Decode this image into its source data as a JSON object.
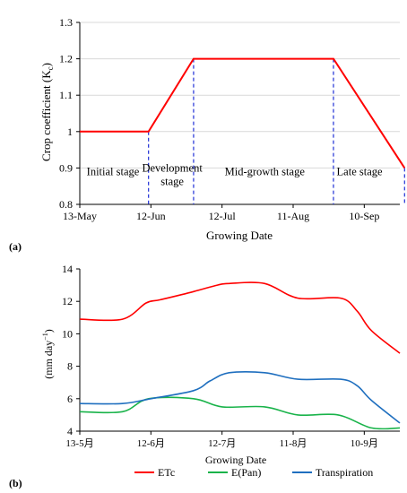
{
  "colors": {
    "kc_line": "#ff0000",
    "stage_divider": "#1f2fd6",
    "etc": "#ff0000",
    "epan": "#19b34a",
    "transpiration": "#1f6fbf"
  },
  "chart_data": [
    {
      "panel_label": "(a)",
      "type": "line",
      "xlabel": "Growing Date",
      "ylabel": "Crop coefficient (K",
      "ylabel_sub": "c",
      "ylabel_end": ")",
      "xlim": [
        "2021-05-13",
        "2021-09-25"
      ],
      "ylim": [
        0.8,
        1.3
      ],
      "x_ticks": [
        {
          "date": "2021-05-13",
          "label": "13-May"
        },
        {
          "date": "2021-06-12",
          "label": "12-Jun"
        },
        {
          "date": "2021-07-12",
          "label": "12-Jul"
        },
        {
          "date": "2021-08-11",
          "label": "11-Aug"
        },
        {
          "date": "2021-09-10",
          "label": "10-Sep"
        }
      ],
      "y_ticks": [
        {
          "value": 0.8,
          "label": "0.8"
        },
        {
          "value": 0.9,
          "label": "0.9"
        },
        {
          "value": 1.0,
          "label": "1"
        },
        {
          "value": 1.1,
          "label": "1.1"
        },
        {
          "value": 1.2,
          "label": "1.2"
        },
        {
          "value": 1.3,
          "label": "1.3"
        }
      ],
      "series": [
        {
          "x": [
            "2021-05-13",
            "2021-06-11",
            "2021-06-30",
            "2021-08-28",
            "2021-09-27"
          ],
          "y": [
            1.0,
            1.0,
            1.2,
            1.2,
            0.9
          ]
        }
      ],
      "stage_boundaries": [
        {
          "date": "2021-06-11",
          "top": 1.0
        },
        {
          "date": "2021-06-30",
          "top": 1.2
        },
        {
          "date": "2021-08-28",
          "top": 1.2
        },
        {
          "date": "2021-09-27",
          "top": 0.9
        }
      ],
      "stages": [
        {
          "lines": [
            "Initial stage"
          ],
          "x_center": "2021-05-27",
          "y": 0.88
        },
        {
          "lines": [
            "Development",
            "stage"
          ],
          "x_center": "2021-06-21",
          "y": 0.89
        },
        {
          "lines": [
            "Mid-growth stage"
          ],
          "x_center": "2021-07-30",
          "y": 0.88
        },
        {
          "lines": [
            "Late stage"
          ],
          "x_center": "2021-09-08",
          "y": 0.88
        }
      ]
    },
    {
      "panel_label": "(b)",
      "type": "line",
      "xlabel": "Growing Date",
      "ylabel": "(mm day",
      "ylabel_sup": "−1",
      "ylabel_end": ")",
      "xlim": [
        "2021-05-13",
        "2021-09-25"
      ],
      "ylim": [
        4,
        14
      ],
      "x_ticks": [
        {
          "date": "2021-05-13",
          "label": "13-5月"
        },
        {
          "date": "2021-06-12",
          "label": "12-6月"
        },
        {
          "date": "2021-07-12",
          "label": "12-7月"
        },
        {
          "date": "2021-08-11",
          "label": "11-8月"
        },
        {
          "date": "2021-09-10",
          "label": "10-9月"
        }
      ],
      "y_ticks": [
        {
          "value": 4,
          "label": "4"
        },
        {
          "value": 6,
          "label": "6"
        },
        {
          "value": 8,
          "label": "8"
        },
        {
          "value": 10,
          "label": "10"
        },
        {
          "value": 12,
          "label": "12"
        },
        {
          "value": 14,
          "label": "14"
        }
      ],
      "series": [
        {
          "name": "ETc",
          "color_key": "etc",
          "x": [
            "2021-05-13",
            "2021-05-31",
            "2021-06-10",
            "2021-06-16",
            "2021-06-30",
            "2021-07-10",
            "2021-07-15",
            "2021-07-30",
            "2021-08-13",
            "2021-08-31",
            "2021-09-07",
            "2021-09-13",
            "2021-09-25"
          ],
          "y": [
            10.9,
            10.9,
            11.9,
            12.1,
            12.6,
            13.0,
            13.1,
            13.1,
            12.2,
            12.2,
            11.4,
            10.2,
            8.8
          ]
        },
        {
          "name": "E(Pan)",
          "color_key": "epan",
          "x": [
            "2021-05-13",
            "2021-05-31",
            "2021-06-11",
            "2021-06-30",
            "2021-07-12",
            "2021-07-30",
            "2021-08-13",
            "2021-08-30",
            "2021-09-13",
            "2021-09-25"
          ],
          "y": [
            5.2,
            5.2,
            6.0,
            6.0,
            5.5,
            5.5,
            5.0,
            5.0,
            4.2,
            4.2
          ]
        },
        {
          "name": "Transpiration",
          "color_key": "transpiration",
          "x": [
            "2021-05-13",
            "2021-05-31",
            "2021-06-12",
            "2021-06-30",
            "2021-07-07",
            "2021-07-15",
            "2021-07-30",
            "2021-08-13",
            "2021-08-31",
            "2021-09-07",
            "2021-09-13",
            "2021-09-25"
          ],
          "y": [
            5.7,
            5.7,
            6.0,
            6.5,
            7.1,
            7.6,
            7.6,
            7.2,
            7.2,
            6.8,
            5.9,
            4.5
          ]
        }
      ],
      "legend": {
        "placement": "bottom",
        "entries": [
          {
            "label": "ETc",
            "color_key": "etc"
          },
          {
            "label": "E(Pan)",
            "color_key": "epan"
          },
          {
            "label": "Transpiration",
            "color_key": "transpiration"
          }
        ]
      }
    }
  ]
}
